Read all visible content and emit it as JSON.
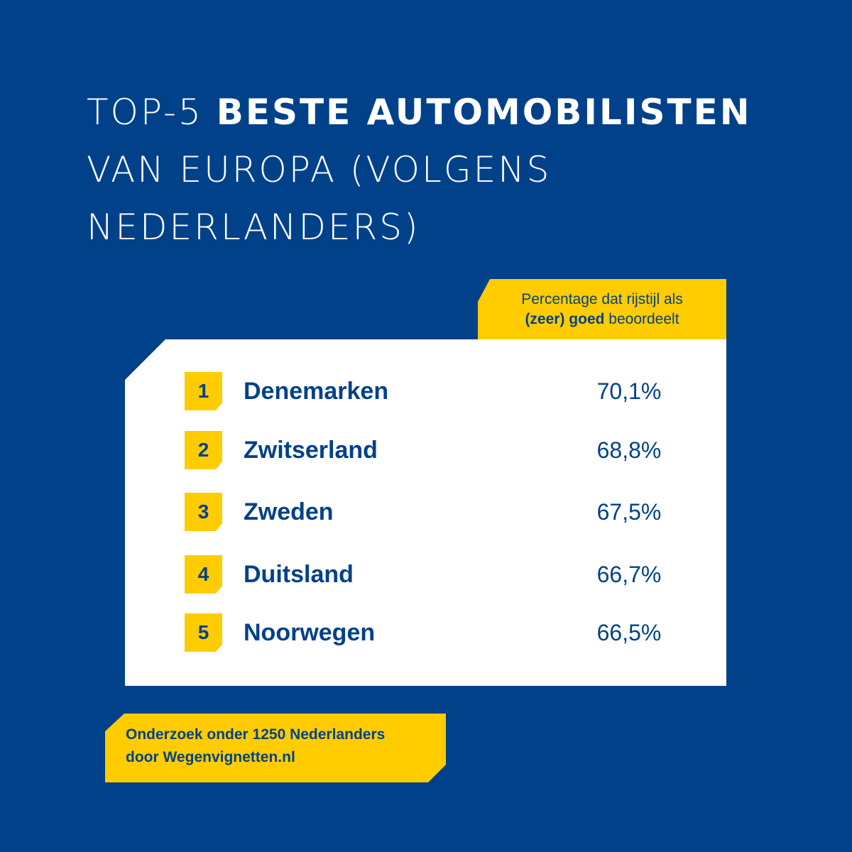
{
  "title": {
    "line1_light": "TOP-5 ",
    "line1_bold": "BESTE AUTOMOBILISTEN",
    "line2": "VAN EUROPA (VOLGENS",
    "line3": "NEDERLANDERS)"
  },
  "column_label": {
    "line1": "Percentage dat rijstijl als",
    "line2_bold": "(zeer) goed",
    "line2_rest": " beoordeelt"
  },
  "ranking": [
    {
      "rank": "1",
      "country": "Denemarken",
      "value": "70,1%"
    },
    {
      "rank": "2",
      "country": "Zwitserland",
      "value": "68,8%"
    },
    {
      "rank": "3",
      "country": "Zweden",
      "value": "67,5%"
    },
    {
      "rank": "4",
      "country": "Duitsland",
      "value": "66,7%"
    },
    {
      "rank": "5",
      "country": "Noorwegen",
      "value": "66,5%"
    }
  ],
  "footer": {
    "line1": "Onderzoek onder 1250 Nederlanders",
    "line2": "door Wegenvignetten.nl"
  },
  "colors": {
    "background": "#00418A",
    "accent": "#FFCC00",
    "card": "#FFFFFF"
  }
}
